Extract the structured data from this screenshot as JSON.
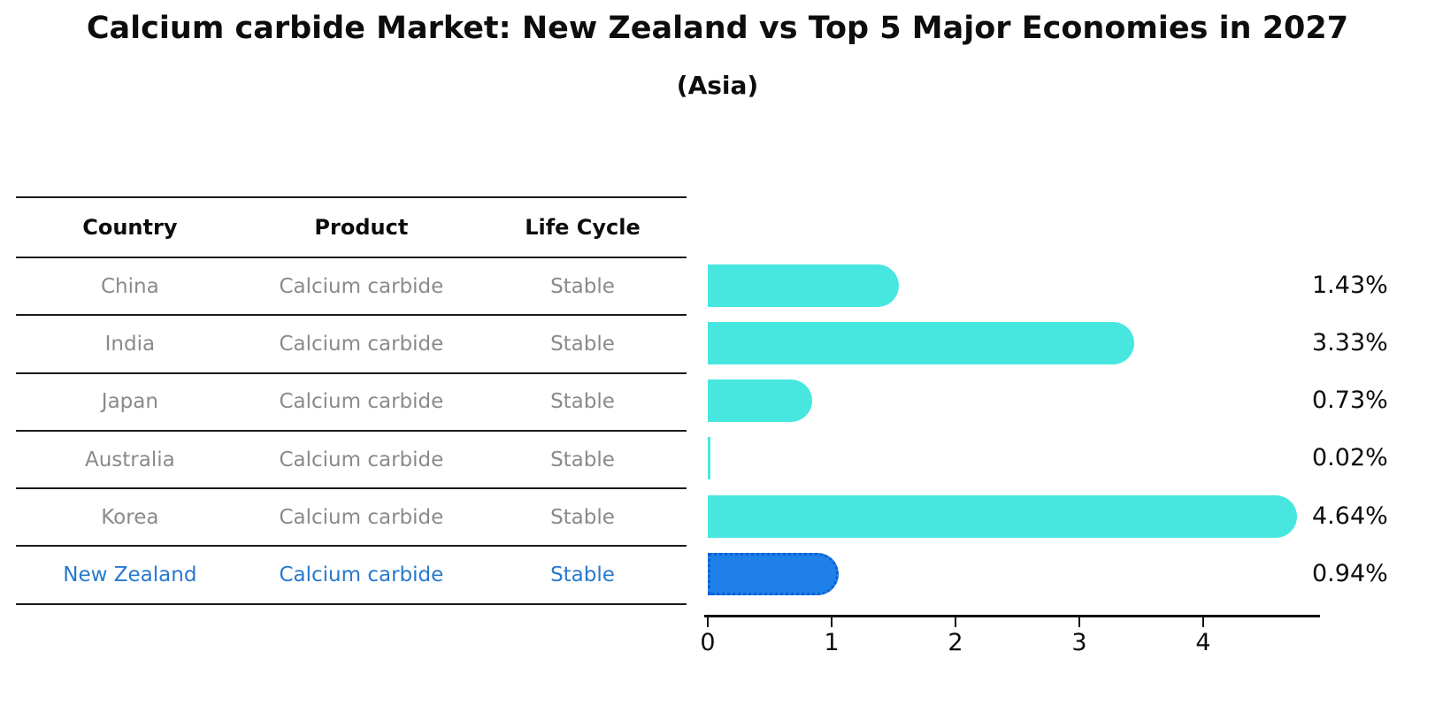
{
  "header": {
    "title": "Calcium carbide Market: New Zealand vs Top 5 Major Economies in 2027",
    "subtitle": "(Asia)"
  },
  "table": {
    "columns": [
      "Country",
      "Product",
      "Life Cycle"
    ],
    "rows": [
      {
        "country": "China",
        "product": "Calcium carbide",
        "life_cycle": "Stable",
        "highlighted": false
      },
      {
        "country": "India",
        "product": "Calcium carbide",
        "life_cycle": "Stable",
        "highlighted": false
      },
      {
        "country": "Japan",
        "product": "Calcium carbide",
        "life_cycle": "Stable",
        "highlighted": false
      },
      {
        "country": "Australia",
        "product": "Calcium carbide",
        "life_cycle": "Stable",
        "highlighted": false
      },
      {
        "country": "Korea",
        "product": "Calcium carbide",
        "life_cycle": "Stable",
        "highlighted": false
      },
      {
        "country": "New Zealand",
        "product": "Calcium carbide",
        "life_cycle": "Stable",
        "highlighted": true
      }
    ]
  },
  "chart_data": {
    "type": "bar",
    "orientation": "horizontal",
    "title": "Calcium carbide Market: New Zealand vs Top 5 Major Economies in 2027",
    "subtitle": "(Asia)",
    "categories": [
      "China",
      "India",
      "Japan",
      "Australia",
      "Korea",
      "New Zealand"
    ],
    "values": [
      1.43,
      3.33,
      0.73,
      0.02,
      4.64,
      0.94
    ],
    "value_labels": [
      "1.43%",
      "3.33%",
      "0.73%",
      "0.02%",
      "4.64%",
      "0.94%"
    ],
    "xticks": [
      "0",
      "1",
      "2",
      "3",
      "4"
    ],
    "xlim": [
      0,
      4.9
    ],
    "grid": false,
    "legend": false,
    "bar_color": "#47e7e0",
    "highlight_index": 5,
    "highlight_bar_color": "#1e80e8",
    "highlight_border_color": "#0d5fd6",
    "highlight_text_color": "#2878cc"
  }
}
